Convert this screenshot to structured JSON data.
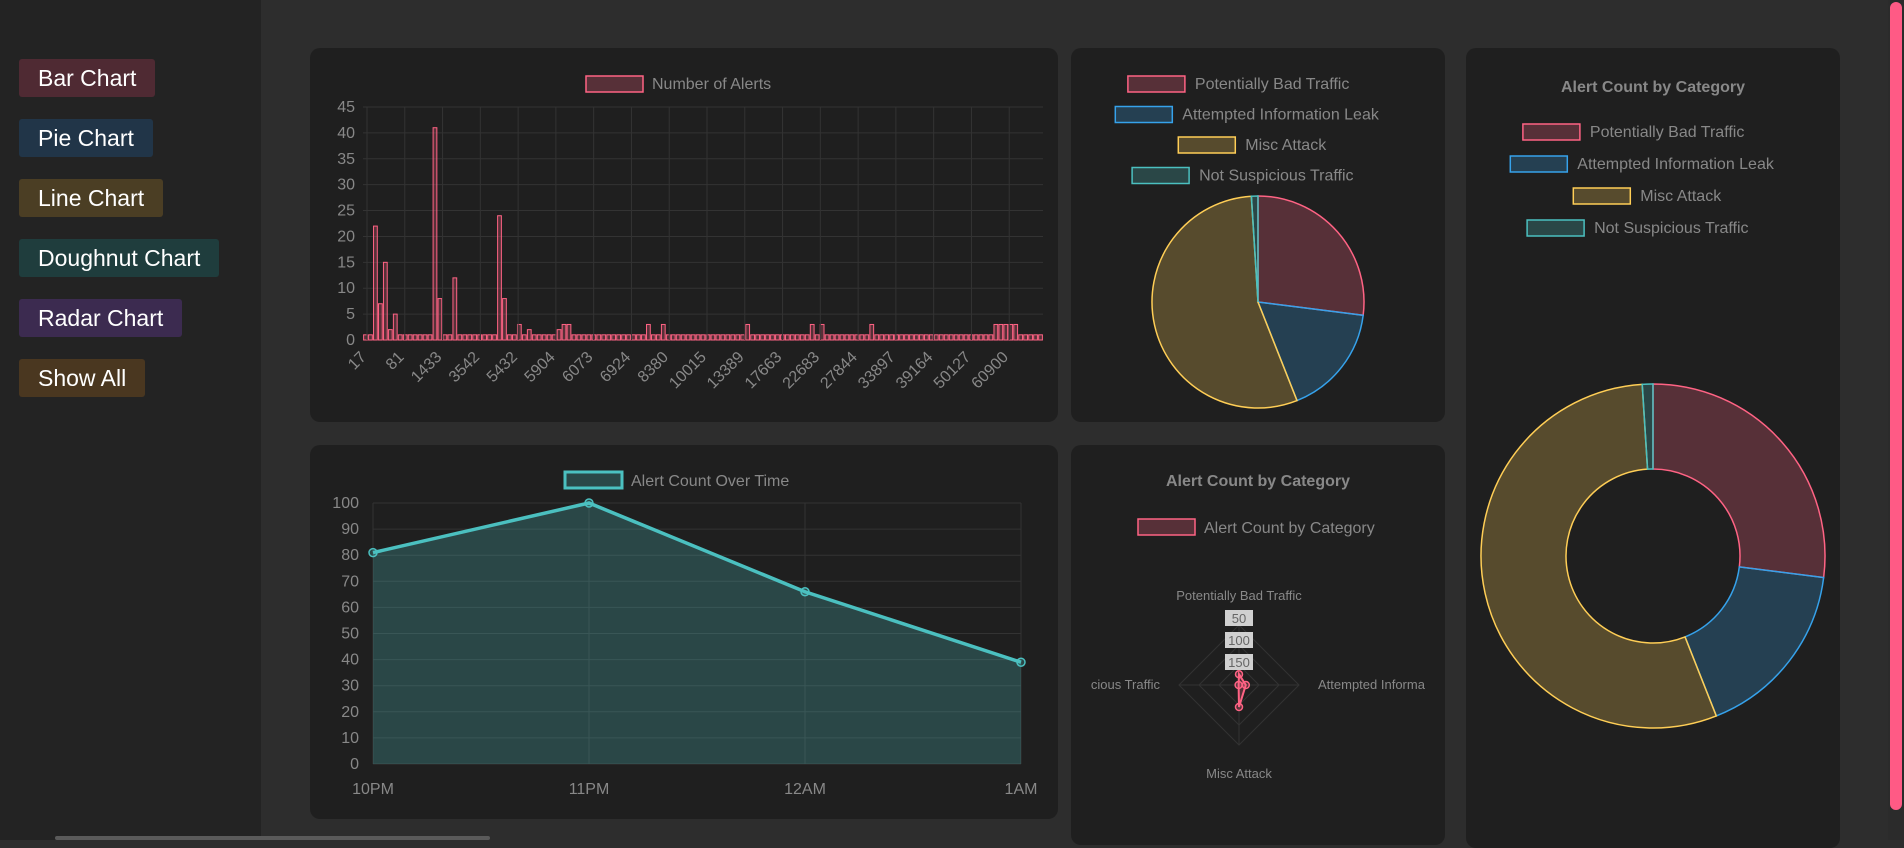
{
  "sidebar": {
    "buttons": [
      {
        "label": "Bar Chart",
        "color": "#4f2a33"
      },
      {
        "label": "Pie Chart",
        "color": "#213548"
      },
      {
        "label": "Line Chart",
        "color": "#4b3e24"
      },
      {
        "label": "Doughnut Chart",
        "color": "#1f3d3d"
      },
      {
        "label": "Radar Chart",
        "color": "#3c2b50"
      },
      {
        "label": "Show All",
        "color": "#4a3720"
      }
    ]
  },
  "colors": {
    "red": "#ff6384",
    "red_fill": "rgba(255,99,132,0.25)",
    "blue": "#36a2eb",
    "blue_fill": "rgba(54,162,235,0.25)",
    "yellow": "#ffce56",
    "yellow_fill": "rgba(255,206,86,0.25)",
    "teal": "#4bc0c0",
    "teal_fill": "rgba(75,192,192,0.25)",
    "grid": "#333333",
    "tick": "#888888"
  },
  "chart_data": [
    {
      "id": "bar",
      "type": "bar",
      "title": "",
      "legend": "Number of Alerts",
      "ylim": [
        0,
        45
      ],
      "yticks": [
        0,
        5,
        10,
        15,
        20,
        25,
        30,
        35,
        40,
        45
      ],
      "xtick_labels": [
        "17",
        "81",
        "1433",
        "3542",
        "5432",
        "5904",
        "6073",
        "6924",
        "8380",
        "10015",
        "13389",
        "17663",
        "22683",
        "27844",
        "33897",
        "39164",
        "50127",
        "60900"
      ],
      "values": [
        1,
        1,
        22,
        7,
        15,
        2,
        5,
        1,
        1,
        1,
        1,
        1,
        1,
        1,
        41,
        8,
        1,
        1,
        12,
        1,
        1,
        1,
        1,
        1,
        1,
        1,
        1,
        24,
        8,
        1,
        1,
        3,
        1,
        2,
        1,
        1,
        1,
        1,
        1,
        2,
        3,
        3,
        1,
        1,
        1,
        1,
        1,
        1,
        1,
        1,
        1,
        1,
        1,
        1,
        1,
        1,
        1,
        3,
        1,
        1,
        3,
        1,
        1,
        1,
        1,
        1,
        1,
        1,
        1,
        1,
        1,
        1,
        1,
        1,
        1,
        1,
        1,
        3,
        1,
        1,
        1,
        1,
        1,
        1,
        1,
        1,
        1,
        1,
        1,
        1,
        3,
        1,
        3,
        1,
        1,
        1,
        1,
        1,
        1,
        1,
        1,
        1,
        3,
        1,
        1,
        1,
        1,
        1,
        1,
        1,
        1,
        1,
        1,
        1,
        1,
        1,
        1,
        1,
        1,
        1,
        1,
        1,
        1,
        1,
        1,
        1,
        1,
        3,
        3,
        3,
        3,
        3,
        1,
        1,
        1,
        1,
        1
      ]
    },
    {
      "id": "pie",
      "type": "pie",
      "title": "",
      "labels": [
        "Potentially Bad Traffic",
        "Attempted Information Leak",
        "Misc Attack",
        "Not Suspicious Traffic"
      ],
      "values": [
        27,
        17,
        55,
        1
      ]
    },
    {
      "id": "doughnut",
      "type": "doughnut",
      "title": "Alert Count by Category",
      "labels": [
        "Potentially Bad Traffic",
        "Attempted Information Leak",
        "Misc Attack",
        "Not Suspicious Traffic"
      ],
      "values": [
        27,
        17,
        55,
        1
      ]
    },
    {
      "id": "line",
      "type": "area",
      "title": "",
      "legend": "Alert Count Over Time",
      "ylim": [
        0,
        100
      ],
      "yticks": [
        0,
        10,
        20,
        30,
        40,
        50,
        60,
        70,
        80,
        90,
        100
      ],
      "categories": [
        "10PM",
        "11PM",
        "12AM",
        "1AM"
      ],
      "values": [
        81,
        100,
        66,
        39
      ]
    },
    {
      "id": "radar",
      "type": "radar",
      "title": "Alert Count by Category",
      "legend": "Alert Count by Category",
      "axes": [
        "Potentially Bad Traffic",
        "Attempted Informa",
        "Misc Attack",
        "cious Traffic"
      ],
      "values": [
        27,
        17,
        55,
        1
      ],
      "rmax": 150,
      "ticks": [
        "50",
        "100",
        "150"
      ]
    }
  ]
}
